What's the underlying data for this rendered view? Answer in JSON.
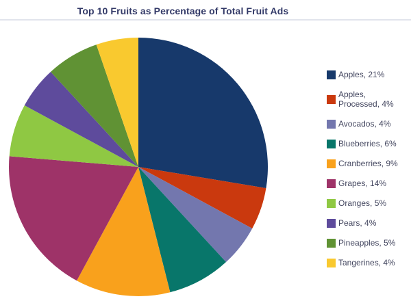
{
  "title": "Top 10 Fruits as Percentage of Total Fruit Ads",
  "chart_data": {
    "type": "pie",
    "title": "Top 10 Fruits as Percentage of Total Fruit Ads",
    "unit": "%",
    "start_angle_deg": 0,
    "direction": "clockwise",
    "normalized_to_sum": true,
    "legend_position": "right",
    "slices": [
      {
        "label": "Apples",
        "value": 21,
        "color": "#17396B",
        "legend_label": "Apples, 21%"
      },
      {
        "label": "Apples, Processed",
        "value": 4,
        "color": "#CA390E",
        "legend_label": "Apples, Processed, 4%"
      },
      {
        "label": "Avocados",
        "value": 4,
        "color": "#7377AE",
        "legend_label": "Avocados, 4%"
      },
      {
        "label": "Blueberries",
        "value": 6,
        "color": "#08766A",
        "legend_label": "Blueberries, 6%"
      },
      {
        "label": "Cranberries",
        "value": 9,
        "color": "#F9A11C",
        "legend_label": "Cranberries, 9%"
      },
      {
        "label": "Grapes",
        "value": 14,
        "color": "#9E3368",
        "legend_label": "Grapes, 14%"
      },
      {
        "label": "Oranges",
        "value": 5,
        "color": "#8FC843",
        "legend_label": "Oranges, 5%"
      },
      {
        "label": "Pears",
        "value": 4,
        "color": "#5E4B9C",
        "legend_label": "Pears, 4%"
      },
      {
        "label": "Pineapples",
        "value": 5,
        "color": "#609234",
        "legend_label": "Pineapples, 5%"
      },
      {
        "label": "Tangerines",
        "value": 4,
        "color": "#F9C92F",
        "legend_label": "Tangerines, 4%"
      }
    ]
  },
  "colors": {
    "title_text": "#333A68",
    "legend_text": "#43465F",
    "divider": "#E1E4EC",
    "background": "#FFFFFF"
  }
}
